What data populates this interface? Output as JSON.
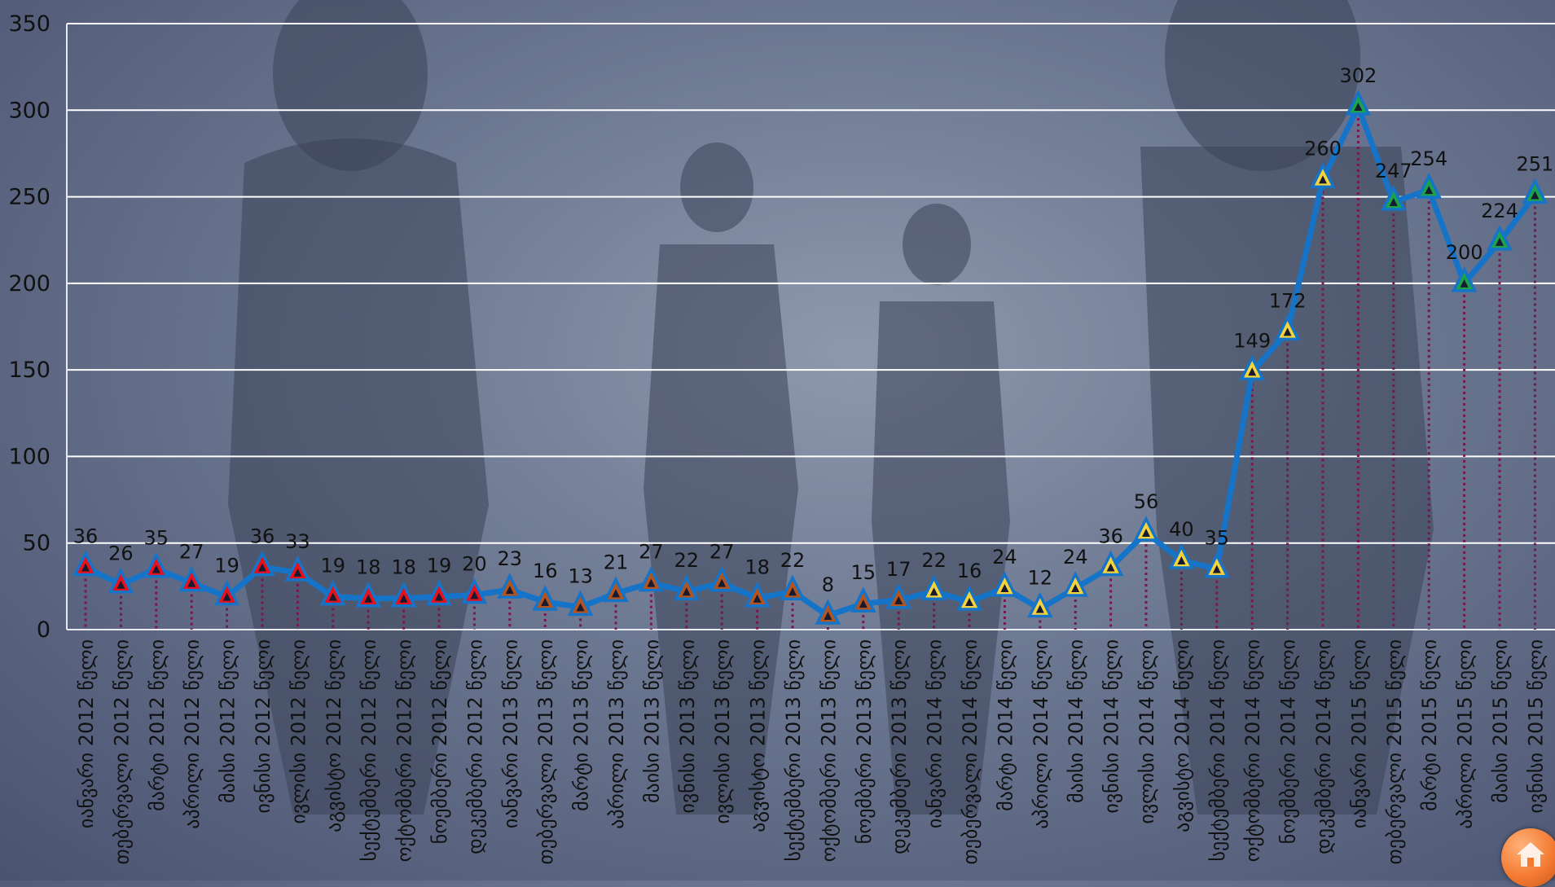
{
  "chart_data": {
    "type": "line",
    "title": "",
    "xlabel": "",
    "ylabel": "",
    "ylim": [
      0,
      350
    ],
    "yticks": [
      0,
      50,
      100,
      150,
      200,
      250,
      300,
      350
    ],
    "grid": true,
    "categories": [
      "იანვარი 2012 წელი",
      "თებერვალი 2012 წელი",
      "მარტი 2012 წელი",
      "აპრილი 2012 წელი",
      "მაისი 2012 წელი",
      "ივნისი 2012 წელი",
      "ივლისი 2012 წელი",
      "აგვისტო 2012 წელი",
      "სექტემბერი 2012 წელი",
      "ოქტომბერი 2012 წელი",
      "ნოემბერი 2012 წელი",
      "დეკემბერი 2012 წელი",
      "იანვარი 2013 წელი",
      "თებერვალი 2013 წელი",
      "მარტი 2013 წელი",
      "აპრილი 2013 წელი",
      "მაისი 2013 წელი",
      "ივნისი 2013 წელი",
      "ივლისი 2013 წელი",
      "აგვისტო 2013 წელი",
      "სექტემბერი 2013 წელი",
      "ოქტომბერი 2013 წელი",
      "ნოემბერი 2013 წელი",
      "დეკემბერი 2013 წელი",
      "იანვარი 2014 წელი",
      "თებერვალი 2014 წელი",
      "მარტი 2014 წელი",
      "აპრილი 2014 წელი",
      "მაისი 2014 წელი",
      "ივნისი 2014 წელი",
      "ივლისი 2014 წელი",
      "აგვისტო 2014 წელი",
      "სექტემბერი 2014 წელი",
      "ოქტომბერი 2014 წელი",
      "ნოემბერი 2014 წელი",
      "დეკემბერი 2014 წელი",
      "იანვარი 2015 წელი",
      "თებერვალი 2015 წელი",
      "მარტი 2015 წელი",
      "აპრილი 2015 წელი",
      "მაისი 2015 წელი",
      "ივნისი 2015 წელი"
    ],
    "values": [
      36,
      26,
      35,
      27,
      19,
      36,
      33,
      19,
      18,
      18,
      19,
      20,
      23,
      16,
      13,
      21,
      27,
      22,
      27,
      18,
      22,
      8,
      15,
      17,
      22,
      16,
      24,
      12,
      24,
      36,
      56,
      40,
      35,
      149,
      172,
      260,
      302,
      247,
      254,
      200,
      224,
      251
    ],
    "year_marker_colors": {
      "2012": "#e8101c",
      "2013": "#b3541e",
      "2014": "#f5d33c",
      "2015": "#1aa34a"
    },
    "line_color": "#1574c8",
    "marker_outline_color": "#1574c8",
    "drop_line_color": "#7a1550"
  },
  "home_button": {
    "icon": "home-icon"
  }
}
